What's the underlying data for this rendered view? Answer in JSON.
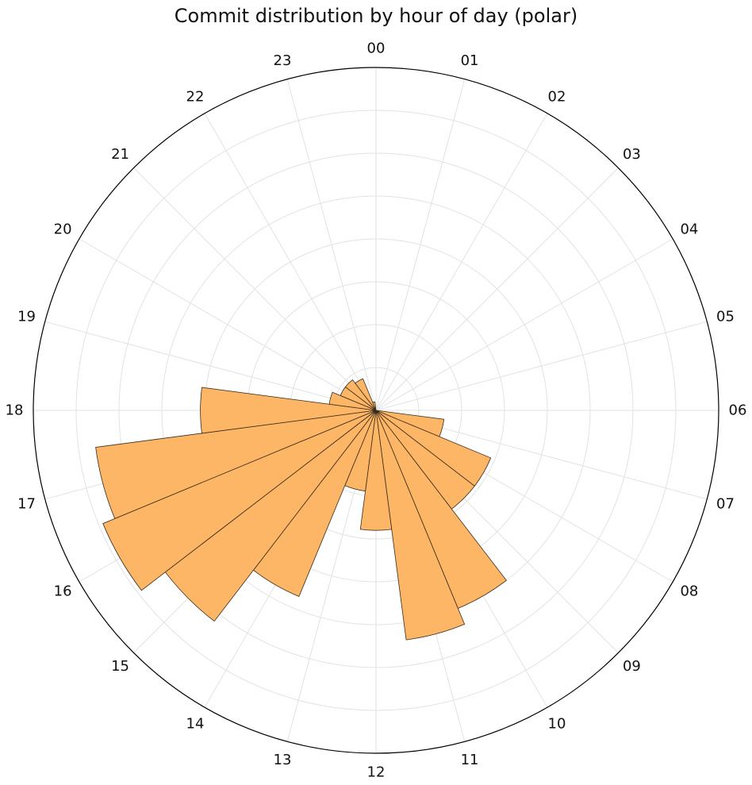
{
  "chart_data": {
    "type": "bar",
    "projection": "polar",
    "title": "Commit distribution by hour of day (polar)",
    "categories": [
      "00",
      "01",
      "02",
      "03",
      "04",
      "05",
      "06",
      "07",
      "08",
      "09",
      "10",
      "11",
      "12",
      "13",
      "14",
      "15",
      "16",
      "17",
      "18",
      "19",
      "20",
      "21",
      "22",
      "23"
    ],
    "values": [
      0.0,
      0.0,
      0.0,
      0.0,
      0.0,
      0.0,
      0.0,
      0.8,
      1.45,
      1.45,
      2.5,
      2.7,
      1.4,
      0.95,
      2.35,
      3.1,
      3.45,
      3.3,
      2.05,
      0.55,
      0.45,
      0.45,
      0.4,
      0.1
    ],
    "rlim": [
      0,
      4
    ],
    "r_ticks": [
      0.5,
      1.0,
      1.5,
      2.0,
      2.5,
      3.0,
      3.5,
      4.0
    ],
    "theta_zero": "top",
    "theta_direction": "clockwise",
    "grid": true,
    "bar_color": "#fdb665",
    "edge_color": "#3a2a1a",
    "grid_color": "#e2e2e2"
  }
}
